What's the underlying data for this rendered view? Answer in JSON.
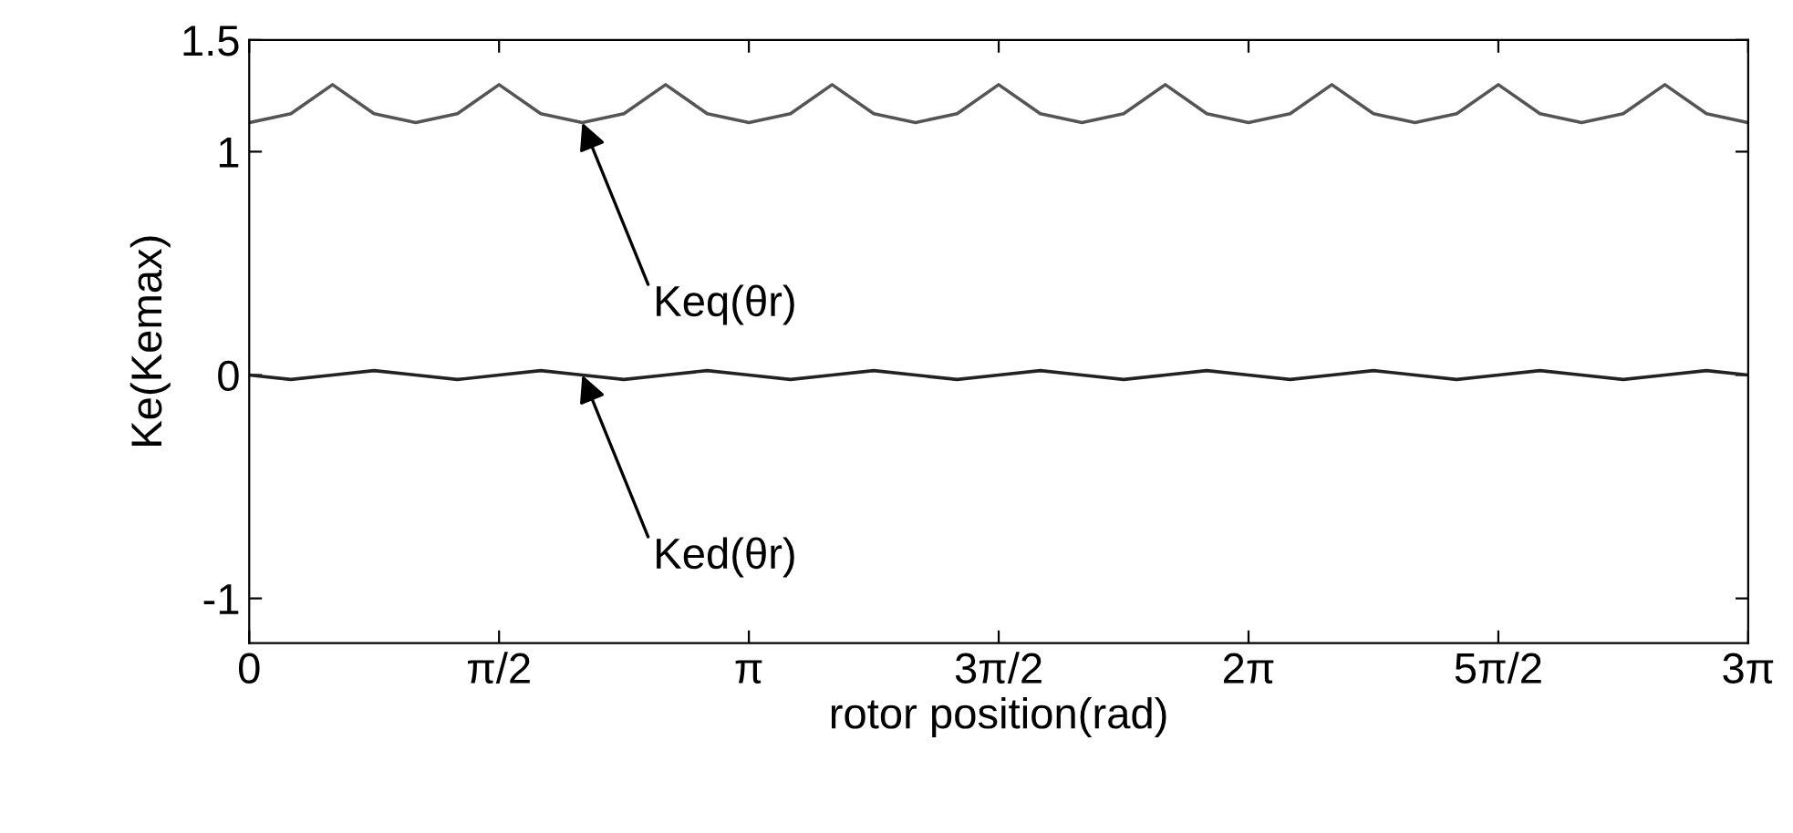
{
  "chart_data": {
    "type": "line",
    "xlabel": "rotor position(rad)",
    "ylabel": "Ke(Kemax)",
    "x": [
      0,
      0.262,
      0.524,
      0.785,
      1.047,
      1.309,
      1.571,
      1.833,
      2.094,
      2.356,
      2.618,
      2.88,
      3.142,
      3.403,
      3.665,
      3.927,
      4.189,
      4.451,
      4.712,
      4.974,
      5.236,
      5.498,
      5.76,
      6.021,
      6.283,
      6.545,
      6.807,
      7.069,
      7.33,
      7.592,
      7.854,
      8.116,
      8.378,
      8.639,
      8.901,
      9.163,
      9.4248
    ],
    "series": [
      {
        "color": "#555555",
        "values": [
          1.13,
          1.17,
          1.3,
          1.17,
          1.13,
          1.17,
          1.3,
          1.17,
          1.13,
          1.17,
          1.3,
          1.17,
          1.13,
          1.17,
          1.3,
          1.17,
          1.13,
          1.17,
          1.3,
          1.17,
          1.13,
          1.17,
          1.3,
          1.17,
          1.13,
          1.17,
          1.3,
          1.17,
          1.13,
          1.17,
          1.3,
          1.17,
          1.13,
          1.17,
          1.3,
          1.17,
          1.13
        ]
      },
      {
        "color": "#222222",
        "values": [
          0,
          -0.02,
          0,
          0.02,
          0,
          -0.02,
          0,
          0.02,
          0,
          -0.02,
          0,
          0.02,
          0,
          -0.02,
          0,
          0.02,
          0,
          -0.02,
          0,
          0.02,
          0,
          -0.02,
          0,
          0.02,
          0,
          -0.02,
          0,
          0.02,
          0,
          -0.02,
          0,
          0.02,
          0,
          -0.02,
          0,
          0.02,
          0
        ]
      }
    ],
    "xlim": [
      0,
      9.4248
    ],
    "xticks": [
      0,
      {
        "value": 1.5708,
        "label": "π/2"
      },
      {
        "value": 3.1416,
        "label": "π"
      },
      {
        "value": 4.7124,
        "label": "3π/2"
      },
      {
        "value": 6.2832,
        "label": "2π"
      },
      {
        "value": 7.854,
        "label": "5π/2"
      },
      {
        "value": 9.4248,
        "label": "3π"
      }
    ],
    "ylim": [
      -1.2,
      1.5
    ],
    "yticks": [
      -1,
      0,
      1,
      1.5
    ],
    "annotations": [
      {
        "text": "Keq(θr)",
        "x": 2.094,
        "y": 1.13
      },
      {
        "text": "Ked(θr)",
        "x": 2.094,
        "y": 0
      }
    ],
    "grid": false,
    "legend": false,
    "marker": "none",
    "line_style": "solid"
  }
}
